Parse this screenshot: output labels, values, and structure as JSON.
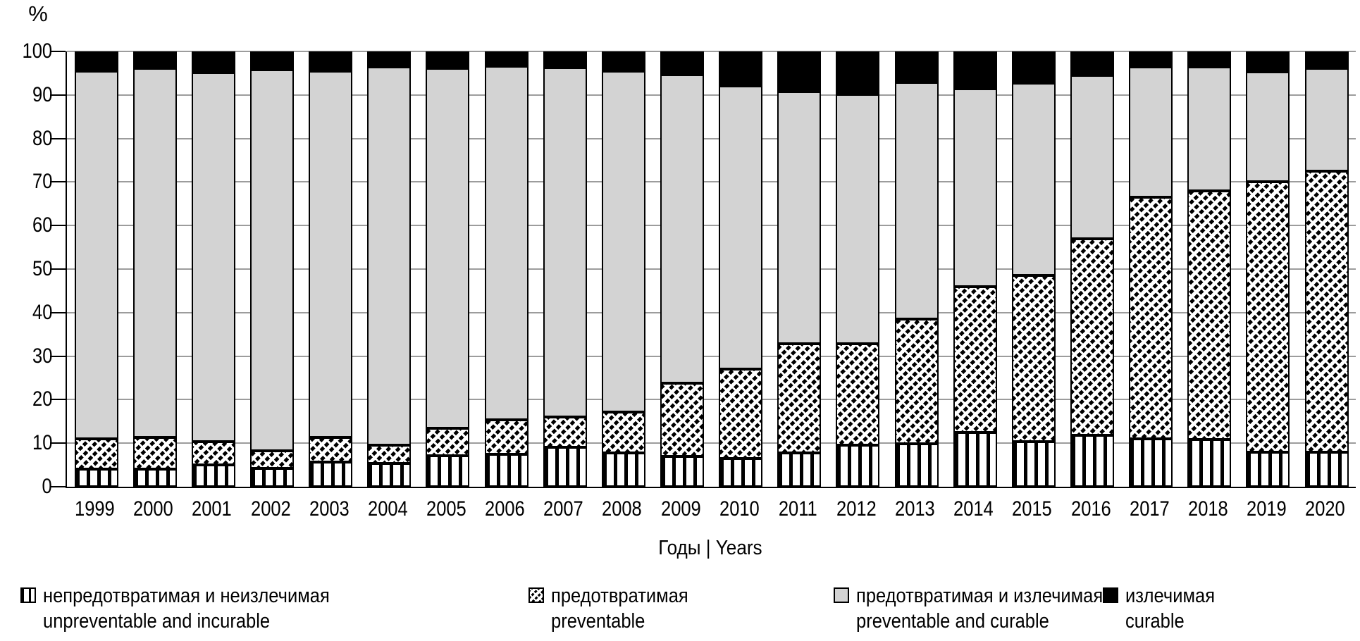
{
  "chart_data": {
    "type": "bar",
    "stacked": true,
    "units": "percent",
    "title": "",
    "ylabel": "%",
    "xlabel": "Годы | Years",
    "ylim": [
      0,
      100
    ],
    "yticks": [
      0,
      10,
      20,
      30,
      40,
      50,
      60,
      70,
      80,
      90,
      100
    ],
    "grid": true,
    "legend_position": "bottom",
    "categories": [
      "1999",
      "2000",
      "2001",
      "2002",
      "2003",
      "2004",
      "2005",
      "2006",
      "2007",
      "2008",
      "2009",
      "2010",
      "2011",
      "2012",
      "2013",
      "2014",
      "2015",
      "2016",
      "2017",
      "2018",
      "2019",
      "2020"
    ],
    "series": [
      {
        "name_ru": "непредотвратимая и неизлечимая",
        "name_en": "unpreventable and incurable",
        "pattern": "vertical-stripes",
        "values": [
          4.0,
          4.0,
          5.0,
          4.2,
          5.7,
          5.3,
          7.2,
          7.5,
          9.0,
          7.8,
          7.0,
          6.4,
          7.7,
          9.6,
          9.8,
          12.4,
          10.3,
          11.8,
          11.0,
          10.8,
          7.9,
          7.9
        ]
      },
      {
        "name_ru": "предотвратимая",
        "name_en": "preventable",
        "pattern": "diagonal-hatch",
        "values": [
          7.0,
          7.3,
          5.4,
          4.0,
          5.7,
          4.3,
          6.3,
          7.9,
          7.0,
          9.3,
          16.8,
          20.6,
          25.2,
          23.3,
          28.7,
          33.6,
          38.2,
          45.2,
          55.5,
          57.2,
          62.1,
          64.6
        ]
      },
      {
        "name_ru": "предотвратимая и излечимая",
        "name_en": "preventable and curable",
        "pattern": "solid-gray",
        "color": "#d3d3d3",
        "values": [
          84.5,
          84.9,
          84.8,
          87.6,
          84.0,
          86.8,
          82.6,
          81.2,
          80.3,
          78.3,
          70.9,
          65.0,
          57.9,
          57.2,
          54.4,
          45.5,
          44.2,
          37.5,
          29.9,
          28.4,
          25.3,
          23.6
        ]
      },
      {
        "name_ru": "излечимая",
        "name_en": "curable",
        "pattern": "solid-black",
        "color": "#000000",
        "values": [
          4.5,
          3.8,
          4.8,
          4.2,
          4.6,
          3.6,
          3.9,
          3.4,
          3.7,
          4.6,
          5.3,
          8.0,
          9.2,
          9.9,
          7.1,
          8.5,
          7.3,
          5.5,
          3.6,
          3.6,
          4.7,
          3.9
        ]
      }
    ]
  },
  "colors": {
    "gridline": "#9c9c9c",
    "axis": "#000000",
    "gray_fill": "#d3d3d3",
    "black_fill": "#000000",
    "background": "#ffffff"
  },
  "legend_x_positions": [
    29,
    750,
    1183,
    1565
  ]
}
